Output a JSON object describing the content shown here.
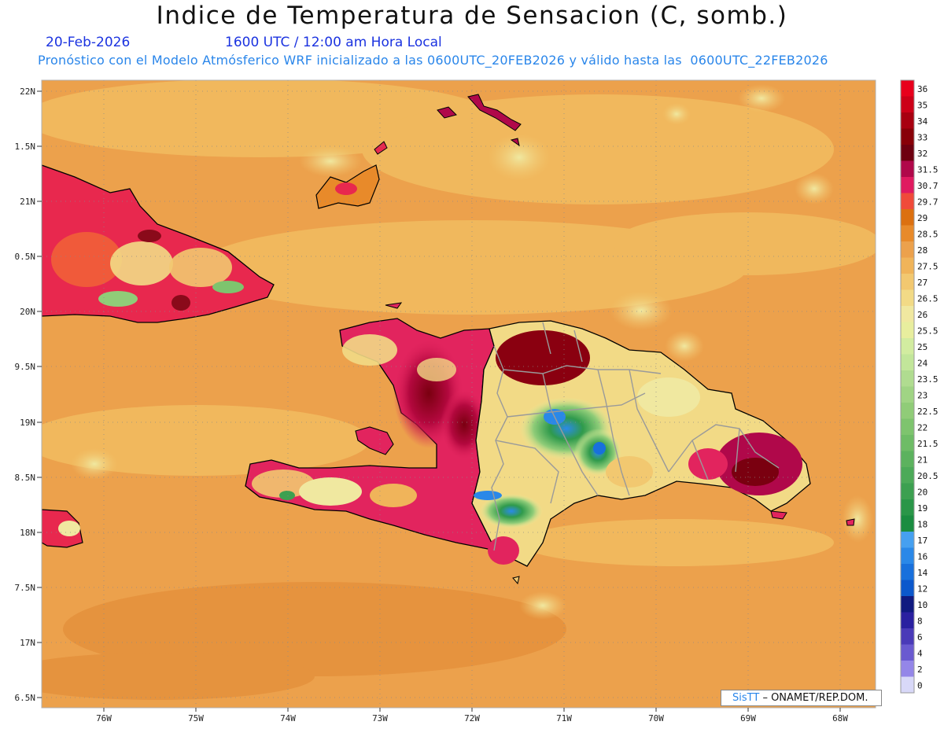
{
  "header": {
    "title": "Indice de Temperatura de Sensacion (C, somb.)",
    "date": "20-Feb-2026",
    "time": "1600 UTC / 12:00 am Hora Local",
    "model_line": "Pronóstico con el Modelo Atmósferico WRF inicializado a las 0600UTC_20FEB2026 y válido hasta las  0600UTC_22FEB2026"
  },
  "map": {
    "lat_labels": [
      "22N",
      "1.5N",
      "21N",
      "0.5N",
      "20N",
      "9.5N",
      "19N",
      "8.5N",
      "18N",
      "7.5N",
      "17N",
      "6.5N"
    ],
    "lon_labels": [
      "76W",
      "75W",
      "74W",
      "73W",
      "72W",
      "71W",
      "70W",
      "69W",
      "68W"
    ],
    "background_color": "#eca14c"
  },
  "legend": {
    "values": [
      "36",
      "35",
      "34",
      "33",
      "32",
      "31.5",
      "30.7",
      "29.7",
      "29",
      "28.5",
      "28",
      "27.5",
      "27",
      "26.5",
      "26",
      "25.5",
      "25",
      "24",
      "23.5",
      "23",
      "22.5",
      "22",
      "21.5",
      "21",
      "20.5",
      "20",
      "19",
      "18",
      "17",
      "16",
      "14",
      "12",
      "10",
      "8",
      "6",
      "4",
      "2",
      "0"
    ],
    "colors": [
      "#e8001c",
      "#cc0018",
      "#a80010",
      "#880008",
      "#6e0010",
      "#b0084a",
      "#e01a60",
      "#f04a3a",
      "#dc7010",
      "#e88a2a",
      "#eca14c",
      "#f0b45a",
      "#f2c870",
      "#f2da86",
      "#f0e8a0",
      "#e8ee9e",
      "#d2eca0",
      "#c2e69a",
      "#b0dc90",
      "#a0d484",
      "#90cc78",
      "#7ec46e",
      "#6ebc66",
      "#5cb25e",
      "#4caa58",
      "#3ca050",
      "#2a9648",
      "#1a8c40",
      "#46a0f0",
      "#2a88e8",
      "#1870dc",
      "#0c58cc",
      "#101a80",
      "#2a20a0",
      "#4a3ab8",
      "#6a5ad0",
      "#9486e8",
      "#d8d8f8"
    ]
  },
  "credit": {
    "brand": "SisTT",
    "org": "– ONAMET/REP.DOM."
  }
}
